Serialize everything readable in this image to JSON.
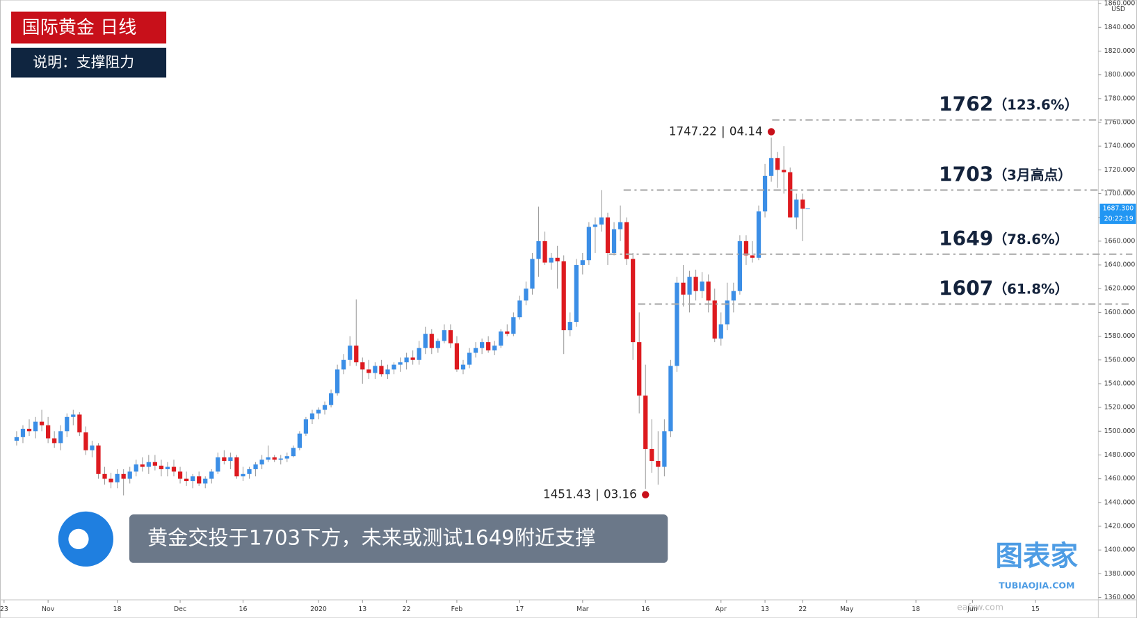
{
  "chart_data": {
    "type": "candlestick",
    "title": "国际黄金  日线",
    "subtitle": "说明：支撑阻力",
    "message": "黄金交投于1703下方，未来或测试1649附近支撑",
    "currency": "USD",
    "watermark": "图表家",
    "watermark_url": "TUBIAOJIA.COM",
    "footer_url": "eafxw.com",
    "up_color": "#3b8ee6",
    "down_color": "#dd1a1f",
    "wick_color": "#9a9a9a",
    "grid": false,
    "ylim": [
      1358,
      1863
    ],
    "yticks": [
      {
        "value": 1360,
        "label": "1360.000"
      },
      {
        "value": 1380,
        "label": "1380.000"
      },
      {
        "value": 1400,
        "label": "1400.000"
      },
      {
        "value": 1420,
        "label": "1420.000"
      },
      {
        "value": 1440,
        "label": "1440.000"
      },
      {
        "value": 1460,
        "label": "1460.000"
      },
      {
        "value": 1480,
        "label": "1480.000"
      },
      {
        "value": 1500,
        "label": "1500.000"
      },
      {
        "value": 1520,
        "label": "1520.000"
      },
      {
        "value": 1540,
        "label": "1540.000"
      },
      {
        "value": 1560,
        "label": "1560.000"
      },
      {
        "value": 1580,
        "label": "1580.000"
      },
      {
        "value": 1600,
        "label": "1600.000"
      },
      {
        "value": 1620,
        "label": "1620.000"
      },
      {
        "value": 1640,
        "label": "1640.000"
      },
      {
        "value": 1660,
        "label": "1660.000"
      },
      {
        "value": 1680,
        "label": "1680.000"
      },
      {
        "value": 1700,
        "label": "1700.000"
      },
      {
        "value": 1720,
        "label": "1720.000"
      },
      {
        "value": 1740,
        "label": "1740.000"
      },
      {
        "value": 1760,
        "label": "1760.000"
      },
      {
        "value": 1780,
        "label": "1780.000"
      },
      {
        "value": 1800,
        "label": "1800.000"
      },
      {
        "value": 1820,
        "label": "1820.000"
      },
      {
        "value": 1840,
        "label": "1840.000"
      },
      {
        "value": 1860,
        "label": "1860.000"
      }
    ],
    "xlim": [
      -2.6,
      172
    ],
    "xticks": [
      {
        "value": -2,
        "label": "23"
      },
      {
        "value": 5,
        "label": "Nov"
      },
      {
        "value": 16,
        "label": "18"
      },
      {
        "value": 26,
        "label": "Dec"
      },
      {
        "value": 36,
        "label": "16"
      },
      {
        "value": 48,
        "label": "2020"
      },
      {
        "value": 55,
        "label": "13"
      },
      {
        "value": 62,
        "label": "22"
      },
      {
        "value": 70,
        "label": "Feb"
      },
      {
        "value": 80,
        "label": "17"
      },
      {
        "value": 90,
        "label": "Mar"
      },
      {
        "value": 100,
        "label": "16"
      },
      {
        "value": 112,
        "label": "Apr"
      },
      {
        "value": 119,
        "label": "13"
      },
      {
        "value": 125,
        "label": "22"
      },
      {
        "value": 132,
        "label": "May"
      },
      {
        "value": 143,
        "label": "18"
      },
      {
        "value": 152,
        "label": "Jun"
      },
      {
        "value": 162,
        "label": "15"
      }
    ],
    "candles": [
      [
        1492,
        1500,
        1488,
        1495
      ],
      [
        1495,
        1505,
        1490,
        1502
      ],
      [
        1502,
        1510,
        1496,
        1500
      ],
      [
        1500,
        1512,
        1494,
        1508
      ],
      [
        1508,
        1518,
        1500,
        1505
      ],
      [
        1505,
        1512,
        1490,
        1494
      ],
      [
        1494,
        1500,
        1486,
        1490
      ],
      [
        1490,
        1505,
        1484,
        1500
      ],
      [
        1500,
        1515,
        1495,
        1512
      ],
      [
        1512,
        1518,
        1505,
        1514
      ],
      [
        1514,
        1516,
        1496,
        1499
      ],
      [
        1499,
        1504,
        1480,
        1484
      ],
      [
        1484,
        1492,
        1478,
        1488
      ],
      [
        1488,
        1490,
        1460,
        1464
      ],
      [
        1464,
        1470,
        1455,
        1460
      ],
      [
        1460,
        1465,
        1452,
        1457
      ],
      [
        1457,
        1468,
        1452,
        1464
      ],
      [
        1464,
        1468,
        1446,
        1460
      ],
      [
        1460,
        1470,
        1456,
        1466
      ],
      [
        1466,
        1476,
        1462,
        1472
      ],
      [
        1472,
        1478,
        1466,
        1470
      ],
      [
        1470,
        1480,
        1464,
        1474
      ],
      [
        1474,
        1480,
        1467,
        1471
      ],
      [
        1471,
        1476,
        1462,
        1468
      ],
      [
        1468,
        1474,
        1462,
        1470
      ],
      [
        1470,
        1476,
        1462,
        1466
      ],
      [
        1466,
        1470,
        1456,
        1460
      ],
      [
        1460,
        1466,
        1454,
        1458
      ],
      [
        1458,
        1464,
        1452,
        1462
      ],
      [
        1462,
        1466,
        1454,
        1456
      ],
      [
        1456,
        1462,
        1452,
        1460
      ],
      [
        1460,
        1468,
        1456,
        1466
      ],
      [
        1466,
        1482,
        1464,
        1478
      ],
      [
        1478,
        1484,
        1472,
        1475
      ],
      [
        1475,
        1482,
        1468,
        1478
      ],
      [
        1478,
        1480,
        1460,
        1462
      ],
      [
        1462,
        1470,
        1458,
        1464
      ],
      [
        1464,
        1470,
        1460,
        1468
      ],
      [
        1468,
        1474,
        1462,
        1472
      ],
      [
        1472,
        1480,
        1468,
        1476
      ],
      [
        1476,
        1488,
        1474,
        1478
      ],
      [
        1478,
        1480,
        1474,
        1476
      ],
      [
        1476,
        1480,
        1472,
        1477
      ],
      [
        1477,
        1482,
        1474,
        1479
      ],
      [
        1479,
        1488,
        1478,
        1486
      ],
      [
        1486,
        1500,
        1484,
        1498
      ],
      [
        1498,
        1512,
        1496,
        1510
      ],
      [
        1510,
        1518,
        1506,
        1515
      ],
      [
        1515,
        1520,
        1510,
        1518
      ],
      [
        1518,
        1525,
        1514,
        1522
      ],
      [
        1522,
        1535,
        1520,
        1532
      ],
      [
        1532,
        1556,
        1530,
        1552
      ],
      [
        1552,
        1565,
        1548,
        1560
      ],
      [
        1560,
        1580,
        1555,
        1572
      ],
      [
        1572,
        1611,
        1555,
        1558
      ],
      [
        1558,
        1562,
        1540,
        1552
      ],
      [
        1552,
        1560,
        1544,
        1549
      ],
      [
        1549,
        1558,
        1544,
        1555
      ],
      [
        1555,
        1560,
        1546,
        1548
      ],
      [
        1548,
        1556,
        1544,
        1552
      ],
      [
        1552,
        1558,
        1548,
        1556
      ],
      [
        1556,
        1562,
        1550,
        1558
      ],
      [
        1558,
        1566,
        1552,
        1562
      ],
      [
        1562,
        1568,
        1556,
        1560
      ],
      [
        1560,
        1576,
        1556,
        1570
      ],
      [
        1570,
        1588,
        1565,
        1582
      ],
      [
        1582,
        1586,
        1565,
        1570
      ],
      [
        1570,
        1578,
        1566,
        1576
      ],
      [
        1576,
        1590,
        1574,
        1585
      ],
      [
        1585,
        1590,
        1570,
        1574
      ],
      [
        1574,
        1580,
        1550,
        1552
      ],
      [
        1552,
        1560,
        1548,
        1556
      ],
      [
        1556,
        1570,
        1553,
        1566
      ],
      [
        1566,
        1575,
        1562,
        1570
      ],
      [
        1570,
        1578,
        1565,
        1575
      ],
      [
        1575,
        1580,
        1566,
        1568
      ],
      [
        1568,
        1576,
        1564,
        1572
      ],
      [
        1572,
        1586,
        1570,
        1584
      ],
      [
        1584,
        1590,
        1580,
        1582
      ],
      [
        1582,
        1600,
        1580,
        1596
      ],
      [
        1596,
        1614,
        1594,
        1610
      ],
      [
        1610,
        1626,
        1606,
        1620
      ],
      [
        1620,
        1650,
        1615,
        1645
      ],
      [
        1645,
        1689,
        1630,
        1660
      ],
      [
        1660,
        1668,
        1640,
        1642
      ],
      [
        1642,
        1650,
        1636,
        1646
      ],
      [
        1646,
        1656,
        1620,
        1643
      ],
      [
        1643,
        1648,
        1565,
        1585
      ],
      [
        1585,
        1600,
        1580,
        1592
      ],
      [
        1592,
        1645,
        1588,
        1640
      ],
      [
        1640,
        1650,
        1632,
        1644
      ],
      [
        1644,
        1676,
        1640,
        1672
      ],
      [
        1672,
        1680,
        1650,
        1674
      ],
      [
        1674,
        1703,
        1668,
        1680
      ],
      [
        1680,
        1684,
        1640,
        1650
      ],
      [
        1650,
        1676,
        1648,
        1670
      ],
      [
        1670,
        1690,
        1660,
        1676
      ],
      [
        1676,
        1680,
        1640,
        1645
      ],
      [
        1645,
        1650,
        1560,
        1575
      ],
      [
        1575,
        1600,
        1515,
        1530
      ],
      [
        1530,
        1556,
        1451.43,
        1485
      ],
      [
        1485,
        1510,
        1465,
        1475
      ],
      [
        1475,
        1500,
        1455,
        1470
      ],
      [
        1470,
        1510,
        1462,
        1500
      ],
      [
        1500,
        1560,
        1495,
        1555
      ],
      [
        1555,
        1630,
        1550,
        1625
      ],
      [
        1625,
        1640,
        1605,
        1615
      ],
      [
        1615,
        1635,
        1600,
        1630
      ],
      [
        1630,
        1636,
        1610,
        1618
      ],
      [
        1618,
        1634,
        1612,
        1626
      ],
      [
        1626,
        1632,
        1600,
        1610
      ],
      [
        1610,
        1620,
        1575,
        1578
      ],
      [
        1578,
        1600,
        1572,
        1590
      ],
      [
        1590,
        1625,
        1585,
        1610
      ],
      [
        1610,
        1625,
        1600,
        1618
      ],
      [
        1618,
        1665,
        1615,
        1660
      ],
      [
        1660,
        1665,
        1640,
        1648
      ],
      [
        1648,
        1660,
        1642,
        1646
      ],
      [
        1646,
        1690,
        1644,
        1685
      ],
      [
        1685,
        1725,
        1680,
        1715
      ],
      [
        1715,
        1747.22,
        1710,
        1730
      ],
      [
        1730,
        1735,
        1705,
        1720
      ],
      [
        1720,
        1740,
        1700,
        1718
      ],
      [
        1718,
        1722,
        1680,
        1680
      ],
      [
        1680,
        1700,
        1670,
        1695
      ],
      [
        1695,
        1700,
        1660,
        1687.3
      ]
    ],
    "last_price": {
      "value": 1687.3,
      "label": "1687.300"
    },
    "countdown": "20:22:19",
    "levels": [
      {
        "value": 1762,
        "note": "（123.6%）"
      },
      {
        "value": 1703,
        "note": "（3月高点）"
      },
      {
        "value": 1649,
        "note": "（78.6%）"
      },
      {
        "value": 1607,
        "note": "（61.8%）"
      }
    ],
    "annotations": [
      {
        "value": 1747.22,
        "date": "04.14",
        "field": "high"
      },
      {
        "value": 1451.43,
        "date": "03.16",
        "field": "low"
      }
    ]
  }
}
